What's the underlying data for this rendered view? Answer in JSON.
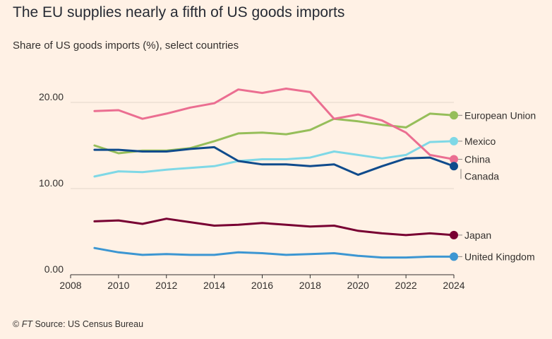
{
  "title": "The EU supplies nearly a fifth of US goods imports",
  "subtitle": "Share of US goods imports (%), select countries",
  "source": {
    "ft": "FT",
    "prefix": "©",
    "text": "Source: US Census Bureau"
  },
  "chart_data": {
    "type": "line",
    "x": [
      2009,
      2010,
      2011,
      2012,
      2013,
      2014,
      2015,
      2016,
      2017,
      2018,
      2019,
      2020,
      2021,
      2022,
      2023,
      2024
    ],
    "xlim": [
      2008,
      2024
    ],
    "xticks": [
      "2008",
      "2010",
      "2012",
      "2014",
      "2016",
      "2018",
      "2020",
      "2022",
      "2024"
    ],
    "ylim": [
      0,
      20
    ],
    "yticks": [
      "0.00",
      "10.00",
      "20.00"
    ],
    "grid": true,
    "legend": "direct labels at line ends",
    "series": [
      {
        "name": "European Union",
        "color": "#96be5a",
        "values": [
          15.0,
          14.1,
          14.4,
          14.4,
          14.7,
          15.5,
          16.4,
          16.5,
          16.3,
          16.8,
          18.1,
          17.8,
          17.4,
          17.1,
          18.7,
          18.5
        ]
      },
      {
        "name": "Mexico",
        "color": "#7fd8e6",
        "values": [
          11.4,
          12.0,
          11.9,
          12.2,
          12.4,
          12.6,
          13.2,
          13.4,
          13.4,
          13.6,
          14.3,
          13.9,
          13.5,
          13.9,
          15.4,
          15.5
        ]
      },
      {
        "name": "China",
        "color": "#eb6e91",
        "values": [
          19.0,
          19.1,
          18.1,
          18.7,
          19.4,
          19.9,
          21.5,
          21.1,
          21.6,
          21.2,
          18.1,
          18.6,
          17.9,
          16.5,
          13.9,
          13.4
        ]
      },
      {
        "name": "Canada",
        "color": "#0f4b8c",
        "values": [
          14.5,
          14.5,
          14.3,
          14.3,
          14.6,
          14.8,
          13.2,
          12.8,
          12.8,
          12.6,
          12.8,
          11.6,
          12.6,
          13.5,
          13.6,
          12.6
        ]
      },
      {
        "name": "Japan",
        "color": "#780032",
        "values": [
          6.2,
          6.3,
          5.9,
          6.5,
          6.1,
          5.7,
          5.8,
          6.0,
          5.8,
          5.6,
          5.7,
          5.1,
          4.8,
          4.6,
          4.8,
          4.6
        ]
      },
      {
        "name": "United Kingdom",
        "color": "#3c96d2",
        "values": [
          3.1,
          2.6,
          2.3,
          2.4,
          2.3,
          2.3,
          2.6,
          2.5,
          2.3,
          2.4,
          2.5,
          2.2,
          2.0,
          2.0,
          2.1,
          2.1
        ]
      }
    ]
  }
}
